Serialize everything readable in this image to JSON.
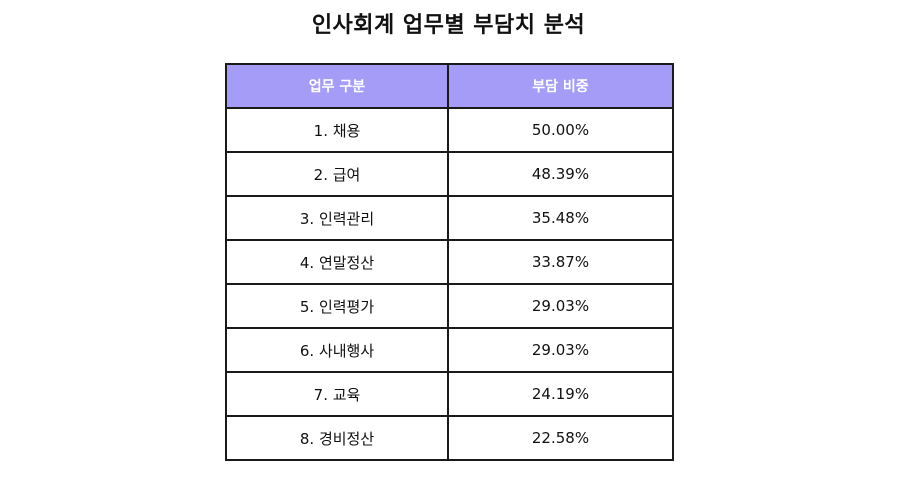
{
  "title": "인사회계 업무별 부담치 분석",
  "table": {
    "headers": [
      "업무 구분",
      "부담 비중"
    ],
    "rows": [
      [
        "1. 채용",
        "50.00%"
      ],
      [
        "2. 급여",
        "48.39%"
      ],
      [
        "3. 인력관리",
        "35.48%"
      ],
      [
        "4. 연말정산",
        "33.87%"
      ],
      [
        "5. 인력평가",
        "29.03%"
      ],
      [
        "6. 사내행사",
        "29.03%"
      ],
      [
        "7. 교육",
        "24.19%"
      ],
      [
        "8. 경비정산",
        "22.58%"
      ]
    ]
  },
  "colors": {
    "header_background": "#a59cf8",
    "header_text": "#ffffff",
    "border": "#1a1a1a"
  }
}
